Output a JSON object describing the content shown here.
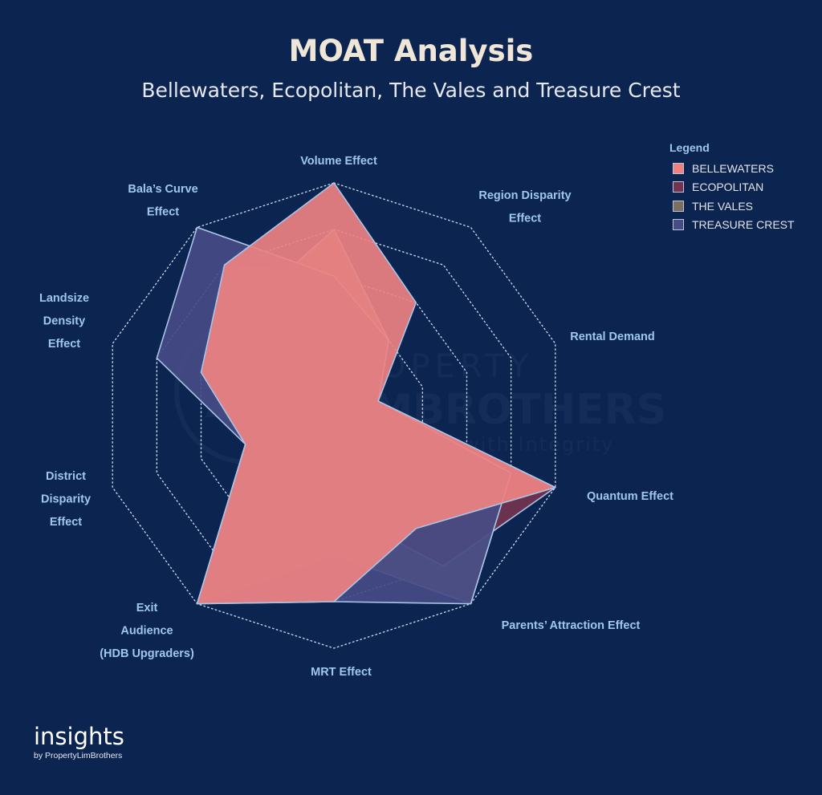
{
  "title": "MOAT Analysis",
  "subtitle": "Bellewaters, Ecopolitan, The Vales and Treasure Crest",
  "chart_data": {
    "type": "radar",
    "axes": [
      {
        "label": [
          "Volume Effect"
        ]
      },
      {
        "label": [
          "Region Disparity",
          "Effect"
        ]
      },
      {
        "label": [
          "Rental Demand"
        ]
      },
      {
        "label": [
          "Quantum Effect"
        ]
      },
      {
        "label": [
          "Parents’ Attraction Effect"
        ]
      },
      {
        "label": [
          "MRT Effect"
        ]
      },
      {
        "label": [
          "Exit",
          "Audience",
          "(HDB Upgraders)"
        ]
      },
      {
        "label": [
          "District",
          "Disparity",
          "Effect"
        ]
      },
      {
        "label": [
          "Landsize",
          "Density",
          "Effect"
        ]
      },
      {
        "label": [
          "Bala’s Curve",
          "Effect"
        ]
      }
    ],
    "range": [
      0,
      5
    ],
    "rings": 5,
    "legend_title": "Legend",
    "series": [
      {
        "name": "THE VALES",
        "color": "#7c6f60",
        "values": [
          4,
          2,
          1,
          4,
          5,
          3,
          5,
          2,
          3,
          3
        ]
      },
      {
        "name": "ECOPOLITAN",
        "color": "#74344f",
        "values": [
          3,
          2,
          1,
          5,
          4,
          2,
          5,
          1,
          3,
          4
        ]
      },
      {
        "name": "TREASURE CREST",
        "color": "#474c86",
        "values": [
          3,
          2,
          1,
          4,
          5,
          4,
          5,
          2,
          4,
          5
        ]
      },
      {
        "name": "BELLEWATERS",
        "color": "#ee8282",
        "values": [
          5,
          3,
          1,
          5,
          3,
          4,
          5,
          2,
          3,
          4
        ]
      }
    ],
    "legend_order": [
      "BELLEWATERS",
      "ECOPOLITAN",
      "THE VALES",
      "TREASURE CREST"
    ],
    "grid": "dotted rings and spokes"
  },
  "watermark": {
    "name_top": "PROPERTY",
    "name_bottom": "LIMBROTHERS",
    "tagline": "Real Estate with Integrity"
  },
  "brand": {
    "main": "insights",
    "sub": "by PropertyLimBrothers"
  }
}
